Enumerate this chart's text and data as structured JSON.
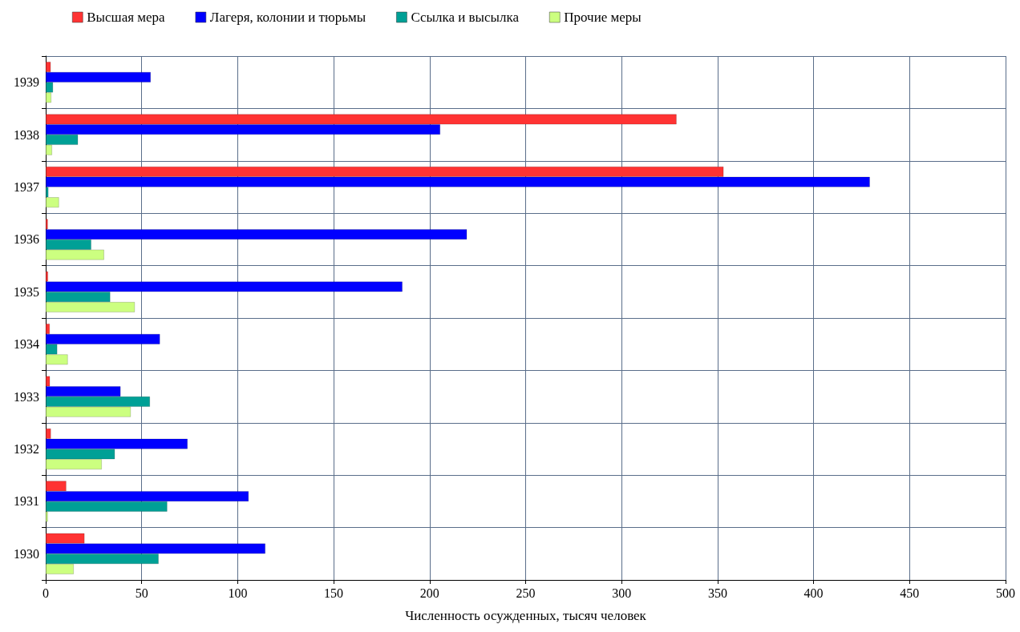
{
  "chart_data": {
    "type": "bar",
    "orientation": "horizontal",
    "xlabel": "Численность осужденных, тысяч человек",
    "categories": [
      "1939",
      "1938",
      "1937",
      "1936",
      "1935",
      "1934",
      "1933",
      "1932",
      "1931",
      "1930"
    ],
    "series": [
      {
        "name": "Высшая мера",
        "color": "#ff3333",
        "values": [
          2.6,
          328.6,
          353.1,
          1.1,
          1.2,
          2.1,
          2.2,
          2.7,
          10.7,
          20.2
        ]
      },
      {
        "name": "Лагеря, колонии и тюрьмы",
        "color": "#0000ff",
        "values": [
          54.7,
          205.5,
          429.3,
          219.4,
          185.8,
          59.5,
          39,
          73.9,
          105.7,
          114.4
        ]
      },
      {
        "name": "Ссылка и высылка",
        "color": "#00a096",
        "values": [
          3.8,
          16.8,
          1.4,
          23.7,
          33.6,
          6,
          54.3,
          36,
          63.3,
          58.8
        ]
      },
      {
        "name": "Прочие меры",
        "color": "#ccff80",
        "values": [
          2.9,
          3.3,
          6.9,
          30.4,
          46.4,
          11.5,
          44.3,
          29.2,
          1.1,
          14.6
        ]
      }
    ],
    "xlim": [
      0,
      500
    ],
    "xticks": [
      0,
      50,
      100,
      150,
      200,
      250,
      300,
      350,
      400,
      450,
      500
    ],
    "grid": true,
    "legend": "top left"
  }
}
